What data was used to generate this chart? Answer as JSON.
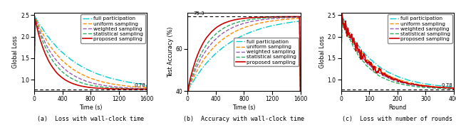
{
  "fig_width": 6.4,
  "fig_height": 1.83,
  "dpi": 100,
  "panel_a": {
    "xlabel": "Time (s)",
    "ylabel": "Global Loss",
    "caption": "(a)  Loss with wall-clock time",
    "xlim": [
      0,
      1600
    ],
    "ylim": [
      0.74,
      2.55
    ],
    "xticks": [
      0,
      400,
      800,
      1200,
      1600
    ],
    "yticks": [
      1.0,
      1.5,
      2.0,
      2.5
    ],
    "hline_y": 0.78
  },
  "panel_b": {
    "xlabel": "Time (s)",
    "ylabel": "Test Accuracy (%)",
    "caption": "(b)  Accuracy with wall-clock time",
    "xlim": [
      0,
      1600
    ],
    "ylim": [
      40,
      77
    ],
    "xticks": [
      0,
      400,
      800,
      1200,
      1600
    ],
    "yticks": [
      40,
      60
    ],
    "hline_y": 75.3,
    "hline_label": "75.3"
  },
  "panel_c": {
    "xlabel": "Round",
    "ylabel": "Global Loss",
    "caption": "(c)  Loss with number of rounds",
    "xlim": [
      0,
      400
    ],
    "ylim": [
      0.74,
      2.55
    ],
    "xticks": [
      0,
      100,
      200,
      300,
      400
    ],
    "yticks": [
      1.0,
      1.5,
      2.0,
      2.5
    ],
    "hline_y": 0.78
  },
  "series": [
    {
      "label": "full participation",
      "color": "#00CCCC",
      "linestyle": "dashdot",
      "linewidth": 1.0
    },
    {
      "label": "uniform sampling",
      "color": "#FF8C00",
      "linestyle": "dashed",
      "linewidth": 1.0
    },
    {
      "label": "weighted sampling",
      "color": "#9B59B6",
      "linestyle": "dashed",
      "linewidth": 1.0
    },
    {
      "label": "statistical sampling",
      "color": "#27AE60",
      "linestyle": "dashed",
      "linewidth": 1.0
    },
    {
      "label": "proposed sampling",
      "color": "#CC0000",
      "linestyle": "solid",
      "linewidth": 1.2
    }
  ],
  "legend_fontsize": 5.2,
  "axis_fontsize": 5.8,
  "tick_fontsize": 5.5,
  "caption_fontsize": 6.0
}
